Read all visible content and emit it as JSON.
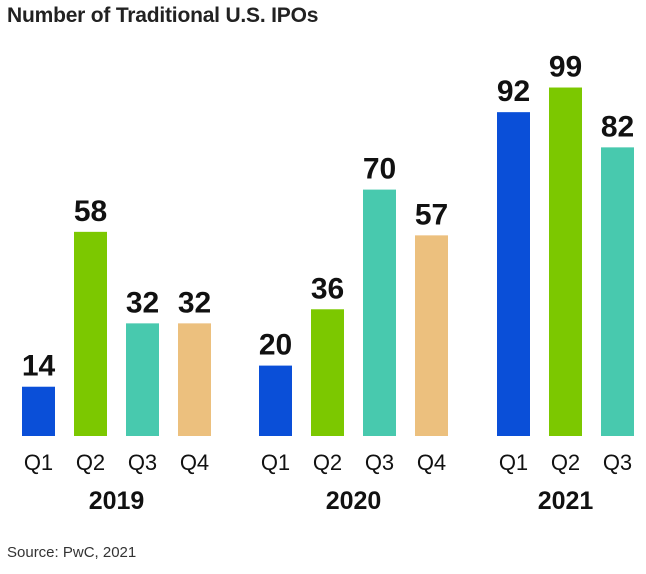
{
  "title": "Number of Traditional U.S. IPOs",
  "source": "Source: PwC, 2021",
  "colors": {
    "Q1": "#0a4fd8",
    "Q2": "#7cc800",
    "Q3": "#48c9ae",
    "Q4": "#ecc07e"
  },
  "chart_data": {
    "type": "bar",
    "title": "Number of Traditional U.S. IPOs",
    "groups": [
      {
        "label": "2019",
        "categories": [
          "Q1",
          "Q2",
          "Q3",
          "Q4"
        ],
        "values": [
          14,
          58,
          32,
          32
        ]
      },
      {
        "label": "2020",
        "categories": [
          "Q1",
          "Q2",
          "Q3",
          "Q4"
        ],
        "values": [
          20,
          36,
          70,
          57
        ]
      },
      {
        "label": "2021",
        "categories": [
          "Q1",
          "Q2",
          "Q3"
        ],
        "values": [
          92,
          99,
          82
        ]
      }
    ],
    "ylim": [
      0,
      99
    ],
    "grid": false,
    "legend": "none"
  }
}
